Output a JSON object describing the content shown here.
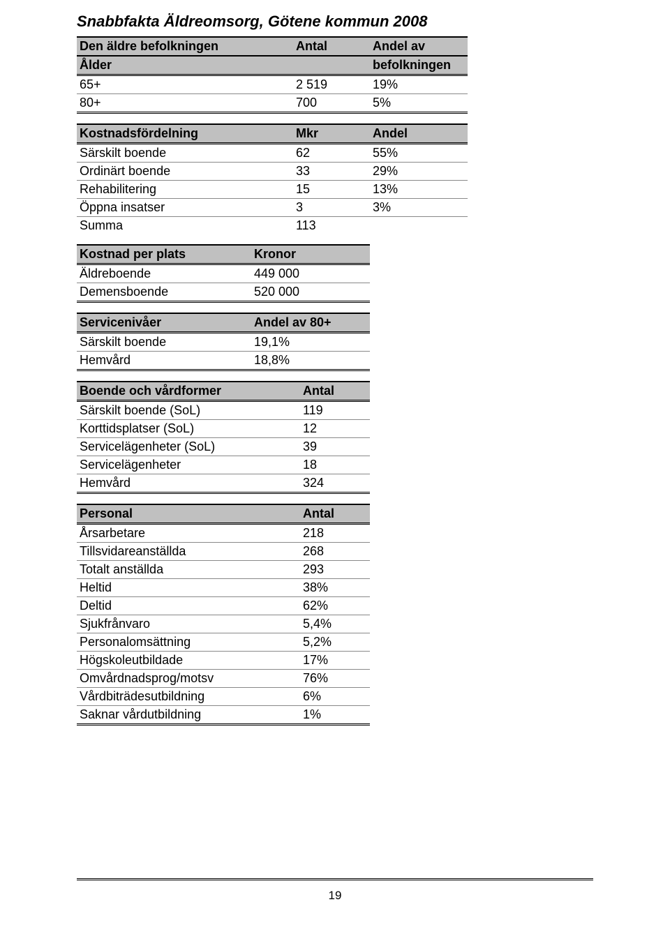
{
  "page": {
    "title": "Snabbfakta Äldreomsorg, Götene kommun 2008",
    "page_number": "19",
    "colors": {
      "header_bg": "#c0c0c0",
      "text": "#000000",
      "background": "#ffffff",
      "row_border": "#888888"
    },
    "typography": {
      "title_fontsize": 22,
      "body_fontsize": 18,
      "font_family": "Arial"
    }
  },
  "population": {
    "type": "table",
    "col1_h1": "Den äldre befolkningen",
    "col1_h2": "Ålder",
    "col2_h1": "Antal",
    "col3_h1": "Andel av",
    "col3_h2": "befolkningen",
    "rows": [
      {
        "label": "65+",
        "antal": "2 519",
        "andel": "19%"
      },
      {
        "label": "80+",
        "antal": "700",
        "andel": "5%"
      }
    ]
  },
  "costs": {
    "type": "table",
    "col1": "Kostnadsfördelning",
    "col2": "Mkr",
    "col3": "Andel",
    "rows": [
      {
        "label": "Särskilt boende",
        "mkr": "62",
        "andel": "55%"
      },
      {
        "label": "Ordinärt boende",
        "mkr": "33",
        "andel": "29%"
      },
      {
        "label": "Rehabilitering",
        "mkr": "15",
        "andel": "13%"
      },
      {
        "label": "Öppna insatser",
        "mkr": "3",
        "andel": "3%"
      }
    ],
    "sum_label": "Summa",
    "sum_value": "113"
  },
  "cost_per_place": {
    "type": "table",
    "col1": "Kostnad per plats",
    "col2": "Kronor",
    "rows": [
      {
        "label": "Äldreboende",
        "value": "449 000"
      },
      {
        "label": "Demensboende",
        "value": "520 000"
      }
    ]
  },
  "service_levels": {
    "type": "table",
    "col1": "Servicenivåer",
    "col2": "Andel av 80+",
    "rows": [
      {
        "label": "Särskilt boende",
        "value": "19,1%"
      },
      {
        "label": "Hemvård",
        "value": "18,8%"
      }
    ]
  },
  "housing_forms": {
    "type": "table",
    "col1": "Boende och vårdformer",
    "col2": "Antal",
    "rows": [
      {
        "label": "Särskilt boende (SoL)",
        "value": "119"
      },
      {
        "label": "Korttidsplatser (SoL)",
        "value": "12"
      },
      {
        "label": "Servicelägenheter (SoL)",
        "value": "39"
      },
      {
        "label": "Servicelägenheter",
        "value": "18"
      },
      {
        "label": "Hemvård",
        "value": "324"
      }
    ]
  },
  "personnel": {
    "type": "table",
    "col1": "Personal",
    "col2": "Antal",
    "rows": [
      {
        "label": "Årsarbetare",
        "value": "218"
      },
      {
        "label": "Tillsvidareanställda",
        "value": "268"
      },
      {
        "label": "Totalt anställda",
        "value": "293"
      },
      {
        "label": "Heltid",
        "value": "38%"
      },
      {
        "label": "Deltid",
        "value": "62%"
      },
      {
        "label": "Sjukfrånvaro",
        "value": "5,4%"
      },
      {
        "label": "Personalomsättning",
        "value": "5,2%"
      },
      {
        "label": "Högskoleutbildade",
        "value": "17%"
      },
      {
        "label": "Omvårdnadsprog/motsv",
        "value": "76%"
      },
      {
        "label": "Vårdbiträdesutbildning",
        "value": "6%"
      },
      {
        "label": "Saknar vårdutbildning",
        "value": "1%"
      }
    ]
  }
}
